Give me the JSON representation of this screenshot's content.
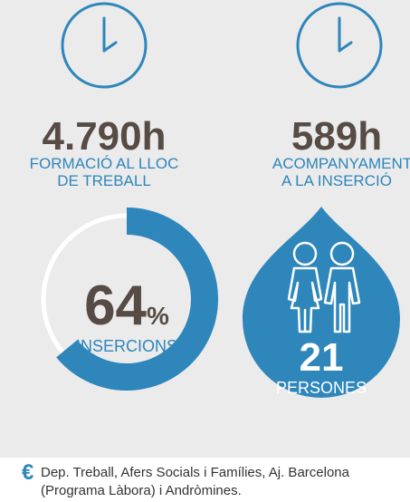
{
  "stats": [
    {
      "value": "4.790h",
      "label_lines": [
        "FORMACIÓ AL LLOC",
        "DE TREBALL"
      ]
    },
    {
      "value": "589h",
      "label_lines": [
        "ACOMPANYAMENT",
        "A LA INSERCIÓ"
      ]
    }
  ],
  "insertions": {
    "value": 64,
    "unit": "%",
    "label": "INSERCIONS"
  },
  "persons": {
    "value": 21,
    "label": "PERSONES"
  },
  "footer": {
    "symbol": "€",
    "lines": [
      "Dep. Treball, Afers Socials i Famílies, Aj. Barcelona",
      "(Programa Làbora) i Andròmines."
    ]
  }
}
